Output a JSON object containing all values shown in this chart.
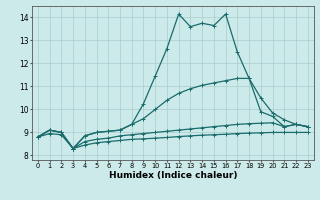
{
  "xlabel": "Humidex (Indice chaleur)",
  "bg_color": "#cceaea",
  "grid_color": "#aacccc",
  "line_color": "#1a6b6b",
  "xlim": [
    -0.5,
    23.5
  ],
  "ylim": [
    7.8,
    14.5
  ],
  "xticks": [
    0,
    1,
    2,
    3,
    4,
    5,
    6,
    7,
    8,
    9,
    10,
    11,
    12,
    13,
    14,
    15,
    16,
    17,
    18,
    19,
    20,
    21,
    22,
    23
  ],
  "yticks": [
    8,
    9,
    10,
    11,
    12,
    13,
    14
  ],
  "series": {
    "main": {
      "x": [
        0,
        1,
        2,
        3,
        4,
        5,
        6,
        7,
        8,
        9,
        10,
        11,
        12,
        13,
        14,
        15,
        16,
        17,
        18,
        19,
        20,
        21,
        22,
        23
      ],
      "y": [
        8.8,
        9.1,
        9.0,
        8.3,
        8.85,
        9.0,
        9.05,
        9.1,
        9.35,
        10.25,
        11.45,
        12.65,
        14.15,
        13.6,
        13.75,
        13.65,
        14.15,
        12.5,
        11.35,
        9.9,
        9.7,
        9.25,
        9.35,
        9.25
      ]
    },
    "upper": {
      "x": [
        0,
        1,
        2,
        3,
        4,
        5,
        6,
        7,
        8,
        9,
        10,
        11,
        12,
        13,
        14,
        15,
        16,
        17,
        18,
        19,
        20,
        21,
        22,
        23
      ],
      "y": [
        8.8,
        9.1,
        9.0,
        8.3,
        8.85,
        9.0,
        9.05,
        9.1,
        9.35,
        9.6,
        10.0,
        10.4,
        10.7,
        10.9,
        11.05,
        11.15,
        11.25,
        11.35,
        11.35,
        10.5,
        9.85,
        9.55,
        9.35,
        9.25
      ]
    },
    "lower": {
      "x": [
        0,
        1,
        2,
        3,
        4,
        5,
        6,
        7,
        8,
        9,
        10,
        11,
        12,
        13,
        14,
        15,
        16,
        17,
        18,
        19,
        20,
        21,
        22,
        23
      ],
      "y": [
        8.8,
        9.1,
        9.0,
        8.3,
        8.6,
        8.7,
        8.75,
        8.85,
        8.9,
        8.95,
        9.0,
        9.05,
        9.1,
        9.15,
        9.2,
        9.25,
        9.3,
        9.35,
        9.38,
        9.4,
        9.42,
        9.25,
        9.35,
        9.25
      ]
    },
    "bottom": {
      "x": [
        0,
        1,
        2,
        3,
        4,
        5,
        6,
        7,
        8,
        9,
        10,
        11,
        12,
        13,
        14,
        15,
        16,
        17,
        18,
        19,
        20,
        21,
        22,
        23
      ],
      "y": [
        8.8,
        8.95,
        8.9,
        8.3,
        8.45,
        8.55,
        8.6,
        8.65,
        8.7,
        8.72,
        8.75,
        8.78,
        8.82,
        8.85,
        8.88,
        8.9,
        8.92,
        8.95,
        8.97,
        8.98,
        9.0,
        9.0,
        9.0,
        9.0
      ]
    }
  }
}
